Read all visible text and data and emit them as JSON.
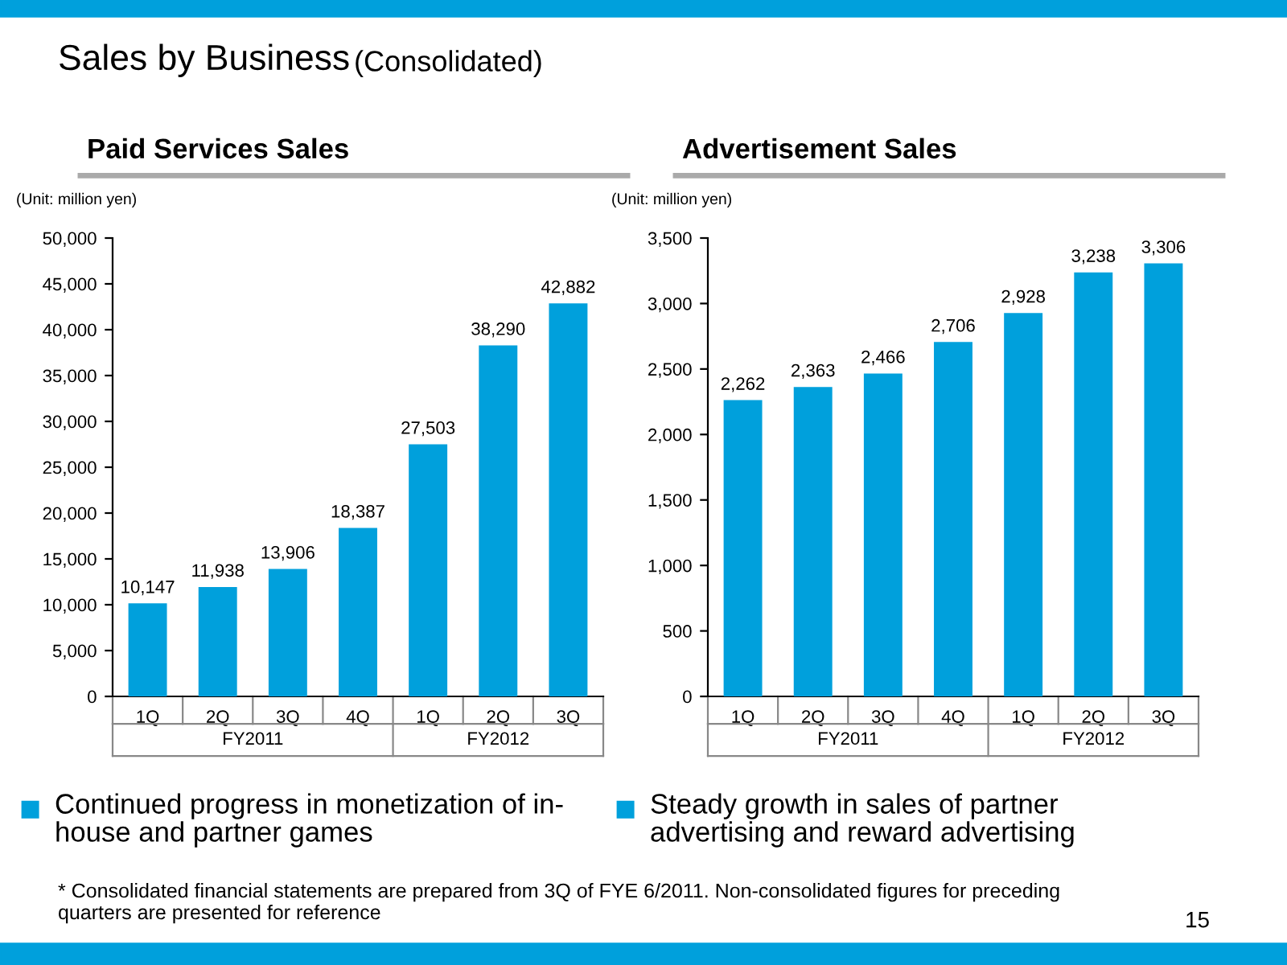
{
  "chart_data": [
    {
      "type": "bar",
      "title": "Paid Services Sales",
      "categories": [
        "1Q",
        "2Q",
        "3Q",
        "4Q",
        "1Q",
        "2Q",
        "3Q"
      ],
      "values": [
        10147,
        11938,
        13906,
        18387,
        27503,
        38290,
        42882
      ],
      "color": "#00a0dc",
      "value_labels": [
        "10,147",
        "11,938",
        "13,906",
        "18,387",
        "27,503",
        "38,290",
        "42,882"
      ],
      "grid": false,
      "legend": false,
      "ylim": [
        0,
        50000
      ],
      "yticks": [
        {
          "value": 0,
          "label": "0"
        },
        {
          "value": 5000,
          "label": "5,000"
        },
        {
          "value": 10000,
          "label": "10,000"
        },
        {
          "value": 15000,
          "label": "15,000"
        },
        {
          "value": 20000,
          "label": "20,000"
        },
        {
          "value": 25000,
          "label": "25,000"
        },
        {
          "value": 30000,
          "label": "30,000"
        },
        {
          "value": 35000,
          "label": "35,000"
        },
        {
          "value": 40000,
          "label": "40,000"
        },
        {
          "value": 45000,
          "label": "45,000"
        },
        {
          "value": 50000,
          "label": "50,000"
        }
      ],
      "annotations": [
        "Sales by Business",
        "(Consolidated)",
        "(Unit: million yen)",
        "FY2011",
        "FY2012",
        "Continued progress in monetization of in-\nhouse and partner games",
        "* Consolidated financial statements are prepared from 3Q of FYE 6/2011. Non-consolidated figures for preceding\nquarters are presented for reference",
        "15"
      ]
    },
    {
      "type": "bar",
      "title": "Advertisement Sales",
      "categories": [
        "1Q",
        "2Q",
        "3Q",
        "4Q",
        "1Q",
        "2Q",
        "3Q"
      ],
      "values": [
        2262,
        2363,
        2466,
        2706,
        2928,
        3238,
        3306
      ],
      "color": "#00a0dc",
      "value_labels": [
        "2,262",
        "2,363",
        "2,466",
        "2,706",
        "2,928",
        "3,238",
        "3,306"
      ],
      "grid": false,
      "legend": false,
      "ylim": [
        0,
        3500
      ],
      "yticks": [
        {
          "value": 0,
          "label": "0"
        },
        {
          "value": 500,
          "label": "500"
        },
        {
          "value": 1000,
          "label": "1,000"
        },
        {
          "value": 1500,
          "label": "1,500"
        },
        {
          "value": 2000,
          "label": "2,000"
        },
        {
          "value": 2500,
          "label": "2,500"
        },
        {
          "value": 3000,
          "label": "3,000"
        },
        {
          "value": 3500,
          "label": "3,500"
        }
      ],
      "annotations": [
        "(Unit: million yen)",
        "FY2011",
        "FY2012",
        "Steady growth in sales of partner\nadvertising and reward advertising"
      ]
    }
  ]
}
